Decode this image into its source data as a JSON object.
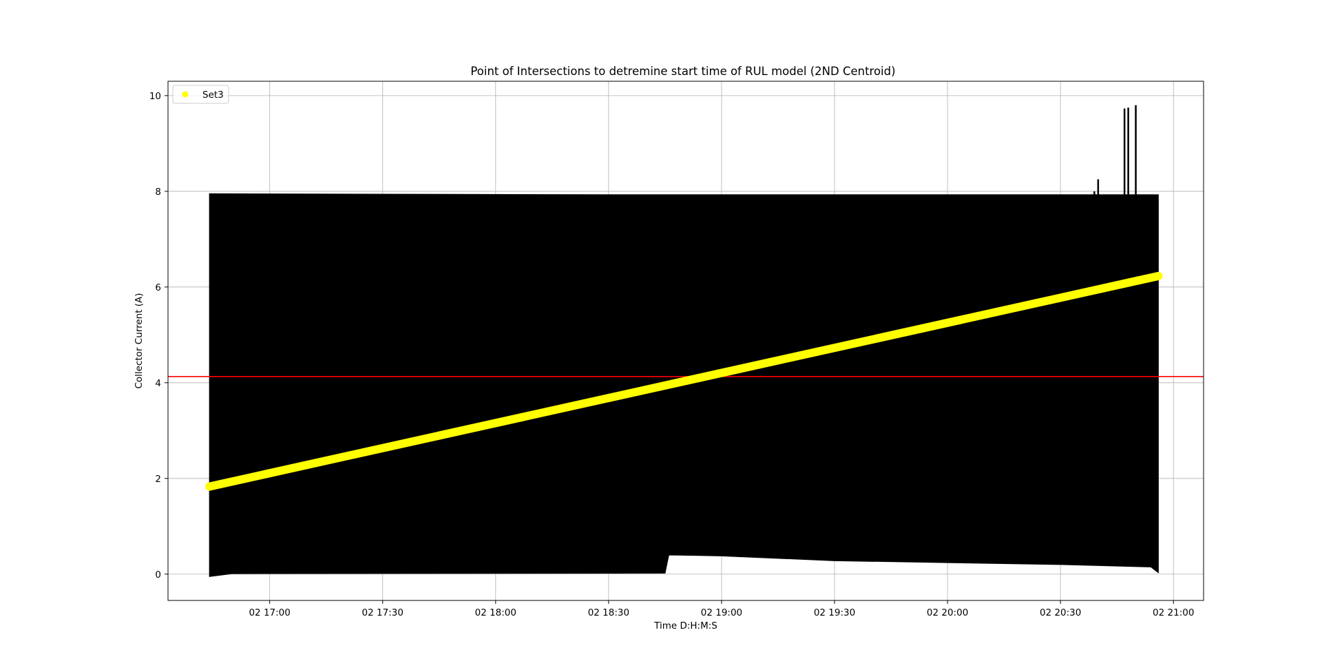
{
  "chart_data": {
    "type": "line",
    "title": "Point of Intersections to detremine start time of RUL model (2ND Centroid)",
    "xlabel": "Time D:H:M:S",
    "ylabel": "Collector Current (A)",
    "x_axis": {
      "min": "02 16:33",
      "max": "02 21:08",
      "ticks": [
        "02 17:00",
        "02 17:30",
        "02 18:00",
        "02 18:30",
        "02 19:00",
        "02 19:30",
        "02 20:00",
        "02 20:30",
        "02 21:00"
      ]
    },
    "y_axis": {
      "ylim": [
        -0.55,
        10.3
      ],
      "ticks": [
        "0",
        "2",
        "4",
        "6",
        "8",
        "10"
      ]
    },
    "grid": true,
    "legend": {
      "placement": "upper-left",
      "entries": [
        {
          "label": "Set3",
          "color": "#ffff00",
          "marker": "circle"
        }
      ]
    },
    "series": [
      {
        "name": "Set3",
        "color": "#ffff00",
        "style": "thick-line-of-markers",
        "points": [
          {
            "x": "02 16:44",
            "y": 1.83
          },
          {
            "x": "02 20:56",
            "y": 6.23
          }
        ]
      },
      {
        "color": "#000000",
        "style": "dense-oscillating-signal",
        "upper_envelope": [
          {
            "x": "02 16:44",
            "y": 7.95
          },
          {
            "x": "02 17:30",
            "y": 7.94
          },
          {
            "x": "02 18:30",
            "y": 7.93
          },
          {
            "x": "02 19:30",
            "y": 7.93
          },
          {
            "x": "02 20:30",
            "y": 7.93
          },
          {
            "x": "02 20:56",
            "y": 7.93
          }
        ],
        "lower_envelope": [
          {
            "x": "02 16:44",
            "y": -0.05
          },
          {
            "x": "02 16:50",
            "y": 0.01
          },
          {
            "x": "02 18:45",
            "y": 0.02
          },
          {
            "x": "02 18:46",
            "y": 0.4
          },
          {
            "x": "02 19:00",
            "y": 0.38
          },
          {
            "x": "02 19:30",
            "y": 0.28
          },
          {
            "x": "02 20:00",
            "y": 0.24
          },
          {
            "x": "02 20:30",
            "y": 0.2
          },
          {
            "x": "02 20:54",
            "y": 0.15
          },
          {
            "x": "02 20:56",
            "y": 0.03
          }
        ],
        "spikes": [
          {
            "x": "02 20:39",
            "y": 8.0
          },
          {
            "x": "02 20:40",
            "y": 8.25
          },
          {
            "x": "02 20:47",
            "y": 9.73
          },
          {
            "x": "02 20:48",
            "y": 9.75
          },
          {
            "x": "02 20:50",
            "y": 9.8
          }
        ]
      },
      {
        "color": "#ff0000",
        "style": "horizontal-threshold-line",
        "y": 4.13
      }
    ]
  }
}
